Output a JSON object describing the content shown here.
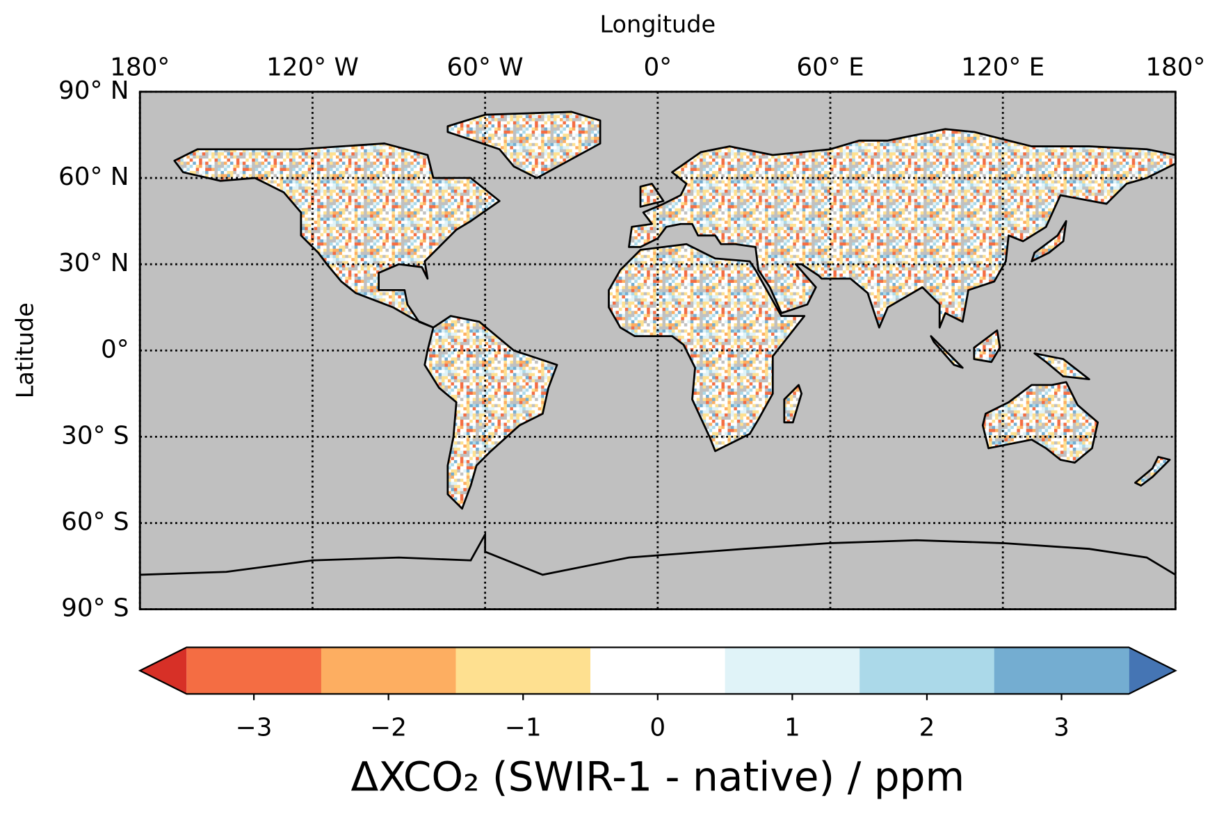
{
  "chart_data": {
    "type": "map",
    "xlabel": "Longitude",
    "ylabel": "Latitude",
    "xlim": [
      -180,
      180
    ],
    "ylim": [
      -90,
      90
    ],
    "xticks": [
      {
        "value": -180,
        "label": "180°"
      },
      {
        "value": -120,
        "label": "120° W"
      },
      {
        "value": -60,
        "label": "60° W"
      },
      {
        "value": 0,
        "label": "0°"
      },
      {
        "value": 60,
        "label": "60° E"
      },
      {
        "value": 120,
        "label": "120° E"
      },
      {
        "value": 180,
        "label": "180°"
      }
    ],
    "yticks": [
      {
        "value": 90,
        "label": "90° N"
      },
      {
        "value": 60,
        "label": "60° N"
      },
      {
        "value": 30,
        "label": "30° N"
      },
      {
        "value": 0,
        "label": "0°"
      },
      {
        "value": -30,
        "label": "30° S"
      },
      {
        "value": -60,
        "label": "60° S"
      },
      {
        "value": -90,
        "label": "90° S"
      }
    ],
    "grid": true,
    "background": "#c0c0c0",
    "colorbar": {
      "label": "ΔXCO₂ (SWIR-1 - native) / ppm",
      "clim": [
        -3.5,
        3.5
      ],
      "ticks": [
        {
          "value": -3,
          "label": "−3"
        },
        {
          "value": -2,
          "label": "−2"
        },
        {
          "value": -1,
          "label": "−1"
        },
        0,
        1,
        2,
        3
      ],
      "colors": [
        "#f46d43",
        "#fdae61",
        "#fee090",
        "#ffffff",
        "#e0f3f8",
        "#abd9e9",
        "#74add1"
      ],
      "extend_colors": [
        "#d73027",
        "#4575b4"
      ]
    }
  }
}
